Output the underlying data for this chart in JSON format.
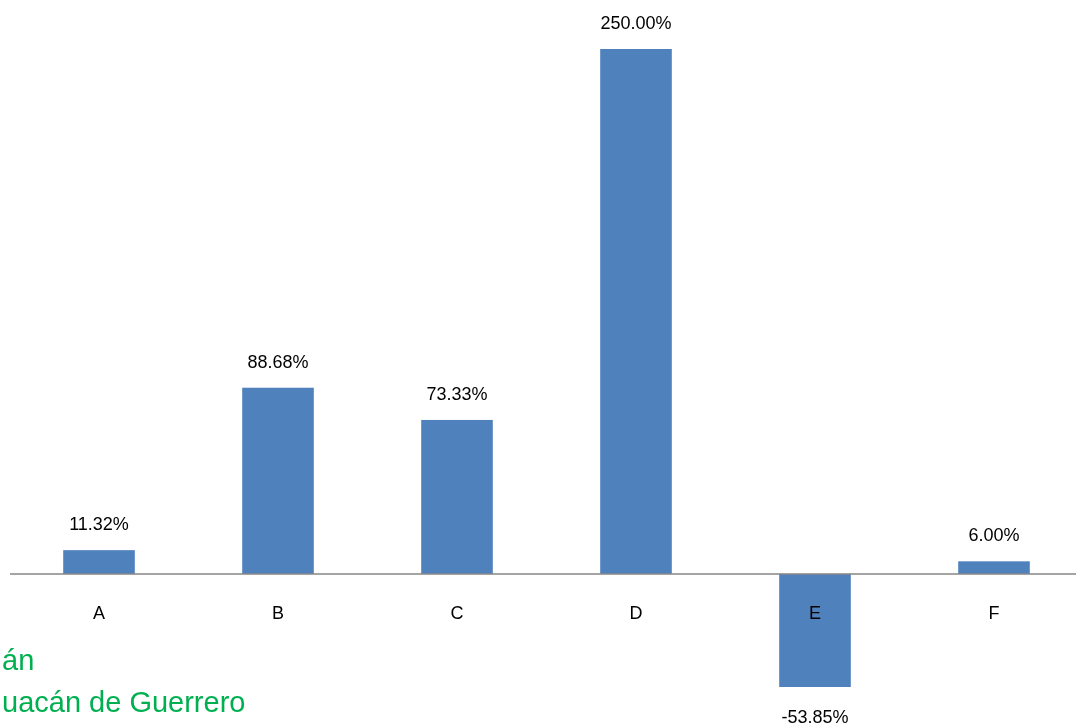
{
  "chart_data": {
    "type": "bar",
    "categories": [
      "A",
      "B",
      "C",
      "D",
      "E",
      "F"
    ],
    "values": [
      11.32,
      88.68,
      73.33,
      250,
      -53.85,
      6
    ],
    "color": "#4f81bd",
    "value_labels": [
      "11.32%",
      "88.68%",
      "73.33%",
      "250.00%",
      "-53.85%",
      "6.00%"
    ],
    "tick_labels": "x",
    "annotations": [
      "án",
      "uacán de Guerrero"
    ]
  }
}
